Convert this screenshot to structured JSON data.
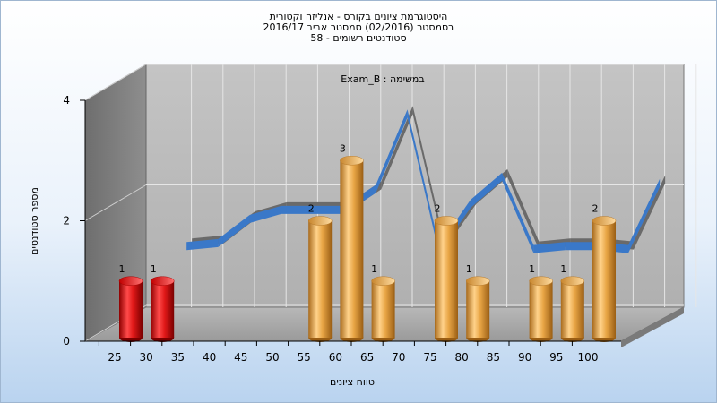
{
  "chart_data": {
    "type": "bar",
    "title_lines": [
      "היסטוגרמת ציונים בקורס - אנליזה וקטורית",
      "בסמסטר  (02/2016)  סמסטר אביב 2016/17",
      "סטודנטים רשומים - 58"
    ],
    "annotation": "Exam_B : במשימה",
    "xlabel": "טווח ציונים",
    "ylabel": "מספר סטודנטים",
    "categories": [
      "25",
      "30",
      "35",
      "40",
      "45",
      "50",
      "55",
      "60",
      "65",
      "70",
      "75",
      "80",
      "85",
      "90",
      "95",
      "100"
    ],
    "values": [
      1,
      1,
      0,
      0,
      0,
      0,
      2,
      3,
      1,
      0,
      2,
      1,
      0,
      1,
      1,
      2
    ],
    "bar_colors": [
      "#e01818",
      "#e01818",
      "#e8a545",
      "#e8a545",
      "#e8a545",
      "#e8a545",
      "#e8a545",
      "#e8a545",
      "#e8a545",
      "#e8a545",
      "#e8a545",
      "#e8a545",
      "#e8a545",
      "#e8a545",
      "#e8a545",
      "#e8a545"
    ],
    "y_ticks": [
      0,
      2,
      4
    ],
    "ylim": [
      0,
      4
    ],
    "trend_line": [
      {
        "x": "30",
        "y": 1.35
      },
      {
        "x": "35",
        "y": 1.4
      },
      {
        "x": "40",
        "y": 1.8
      },
      {
        "x": "45",
        "y": 1.95
      },
      {
        "x": "50",
        "y": 1.95
      },
      {
        "x": "55",
        "y": 1.95
      },
      {
        "x": "60",
        "y": 2.3
      },
      {
        "x": "65",
        "y": 3.55
      },
      {
        "x": "70",
        "y": 1.3
      },
      {
        "x": "75",
        "y": 2.05
      },
      {
        "x": "80",
        "y": 2.5
      },
      {
        "x": "85",
        "y": 1.3
      },
      {
        "x": "90",
        "y": 1.35
      },
      {
        "x": "95",
        "y": 1.35
      },
      {
        "x": "100",
        "y": 1.3
      },
      {
        "x": "105",
        "y": 2.4
      }
    ],
    "trend_colors": {
      "front": "#3a78c8",
      "back": "#6a6a6a"
    },
    "grid": true
  }
}
